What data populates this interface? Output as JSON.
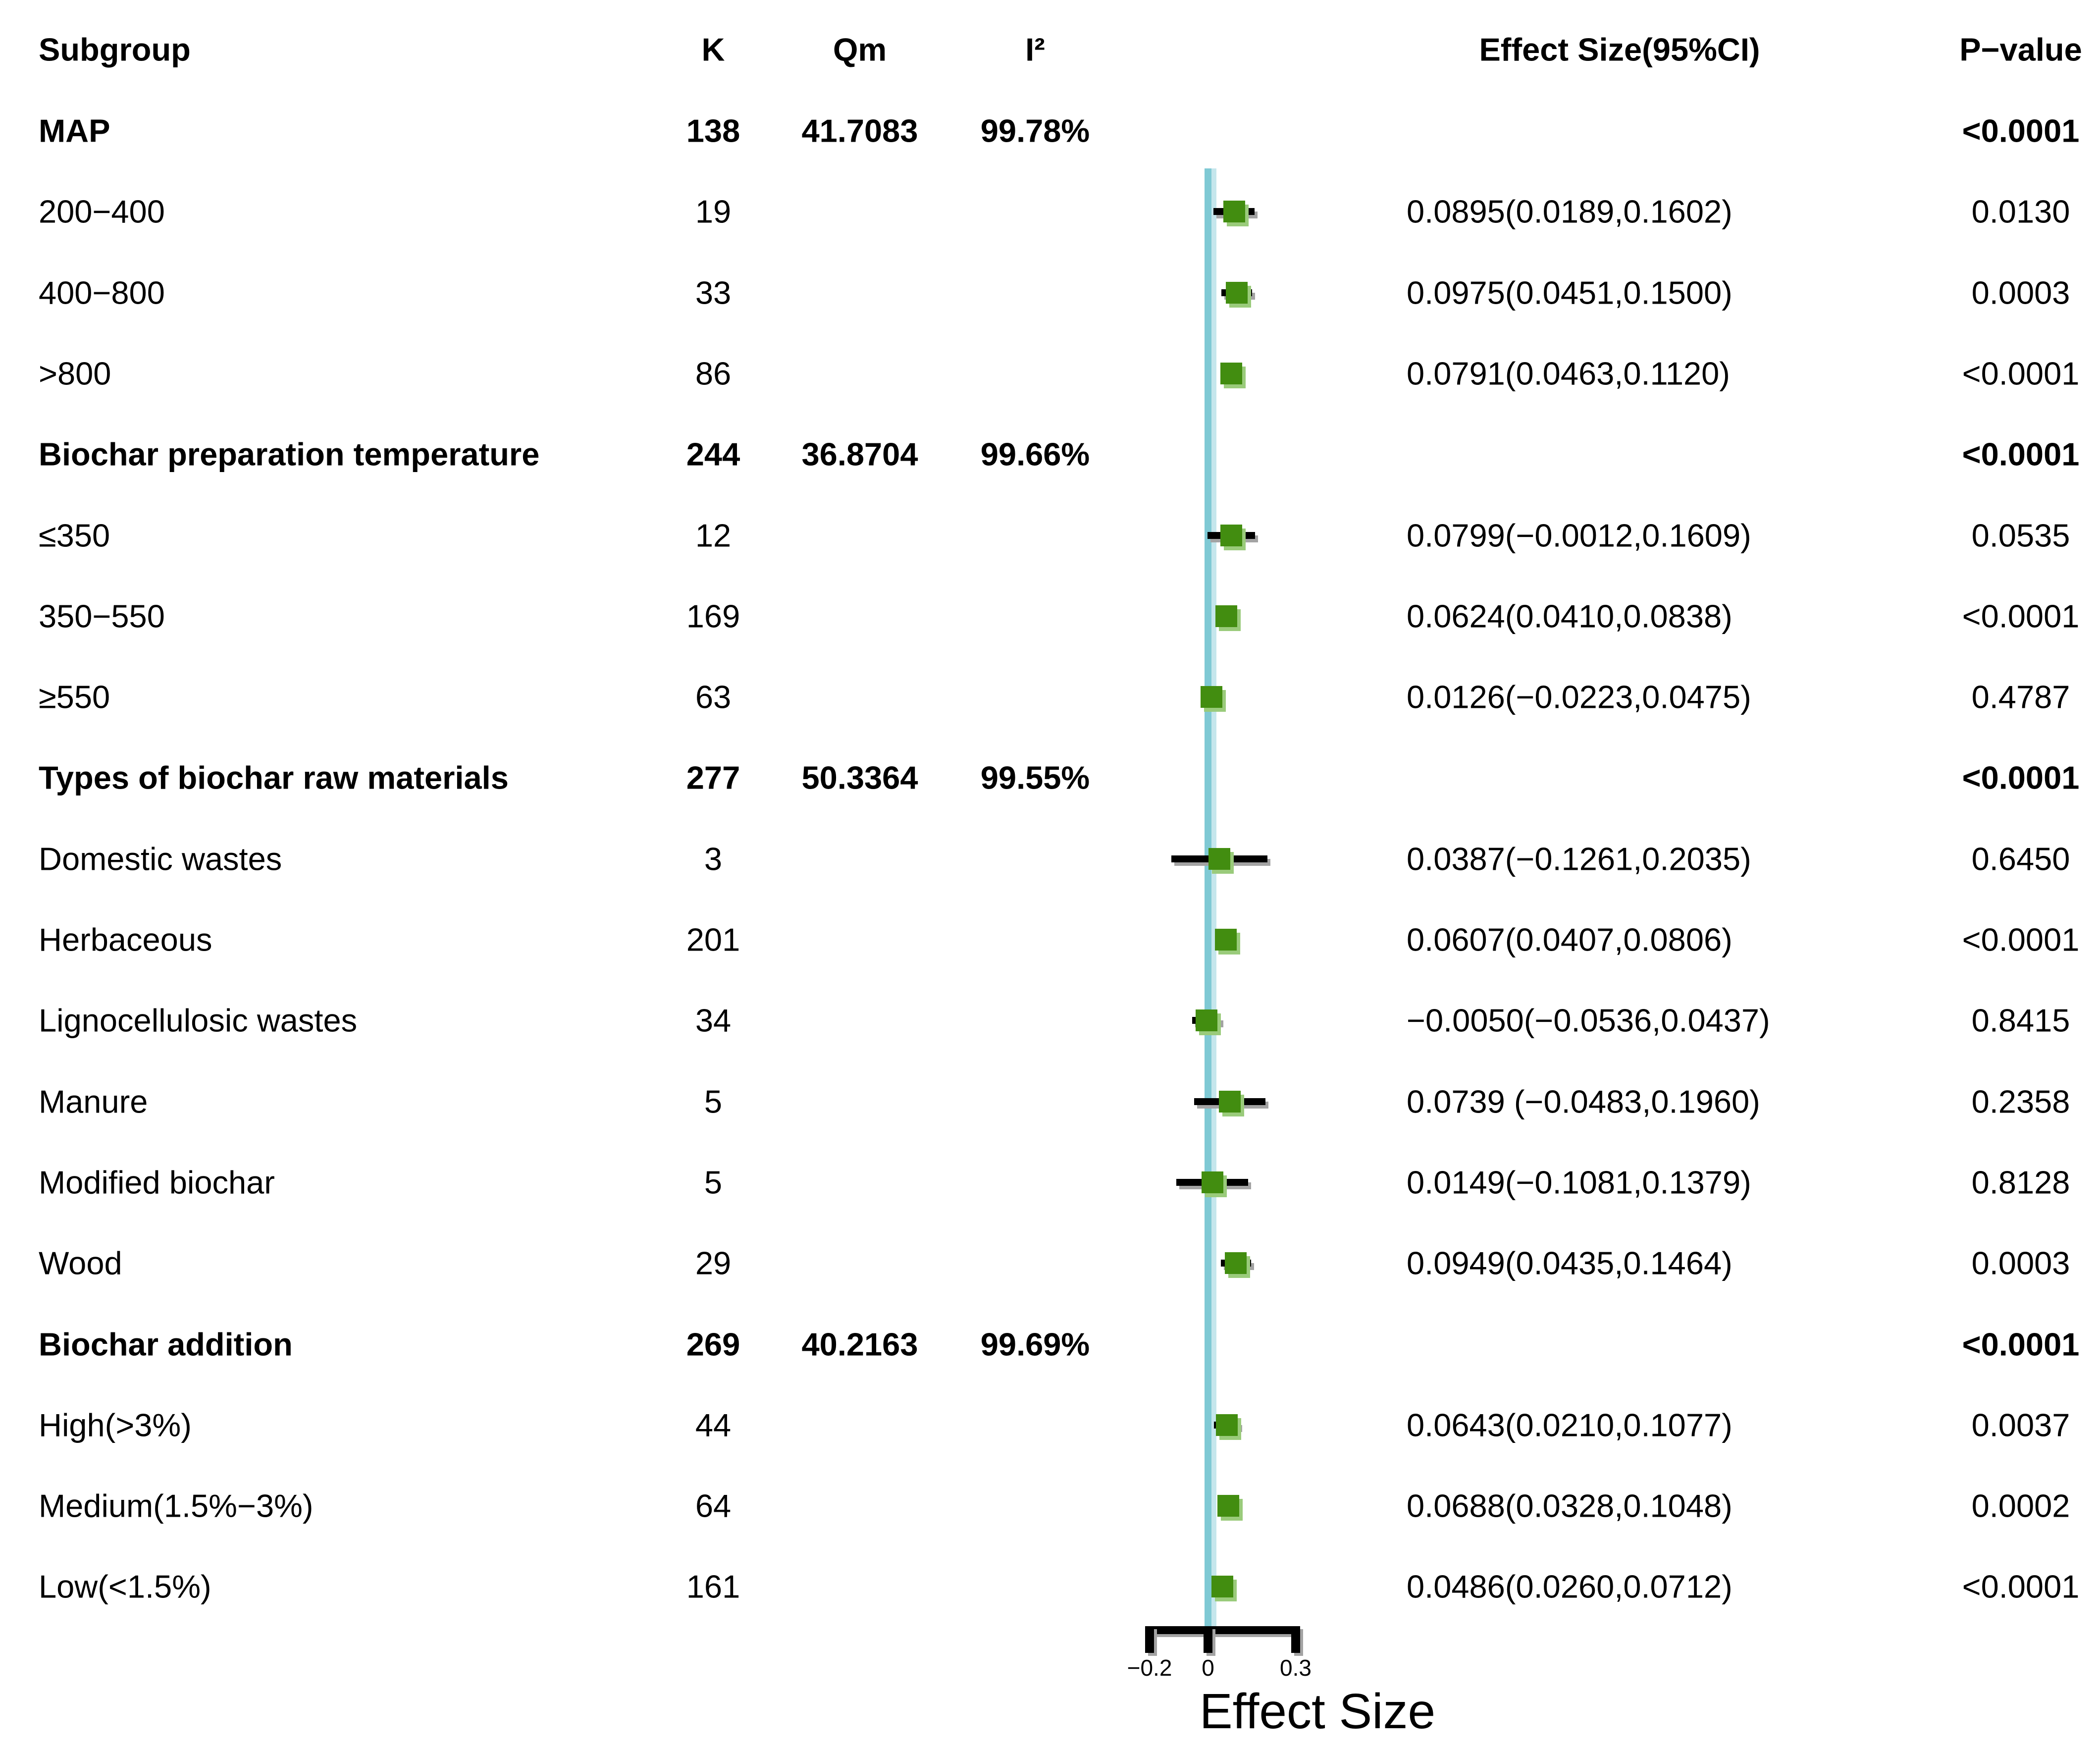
{
  "colors": {
    "marker": "#428D10",
    "marker_shadow": "#9ACB7B",
    "ci": "#000000",
    "ci_shadow": "#A3A3A3",
    "reference_line": "#7FC9D4",
    "reference_line_shadow": "#C5E6EC",
    "text": "#000000",
    "background": "#FFFFFF"
  },
  "chart_data": {
    "type": "forest",
    "variant": "subgroup-meta-analysis",
    "title": "",
    "xlabel": "Effect Size",
    "legend": "none",
    "grid": false,
    "x_axis": {
      "range": [
        -0.2,
        0.3
      ],
      "tick_values": [
        -0.2,
        0,
        0.3
      ],
      "tick_labels": [
        "−0.2",
        "0",
        "0.3"
      ],
      "reference_line": 0
    },
    "columns": {
      "subgroup": "Subgroup",
      "k": "K",
      "qm": "Qm",
      "i2": "I²",
      "effect": "Effect Size(95%CI)",
      "pvalue": "P−value"
    },
    "rows": [
      {
        "type": "section",
        "label": "MAP",
        "k": "138",
        "qm": "41.7083",
        "i2": "99.78%",
        "p": "<0.0001"
      },
      {
        "type": "item",
        "label": "200−400",
        "k": "19",
        "es": 0.0895,
        "lo": 0.0189,
        "hi": 0.1602,
        "es_text": "0.0895(0.0189,0.1602)",
        "p": "0.0130"
      },
      {
        "type": "item",
        "label": "400−800",
        "k": "33",
        "es": 0.0975,
        "lo": 0.0451,
        "hi": 0.15,
        "es_text": "0.0975(0.0451,0.1500)",
        "p": "0.0003"
      },
      {
        "type": "item",
        "label": ">800",
        "k": "86",
        "es": 0.0791,
        "lo": 0.0463,
        "hi": 0.112,
        "es_text": "0.0791(0.0463,0.1120)",
        "p": "<0.0001"
      },
      {
        "type": "section",
        "label": "Biochar preparation temperature",
        "k": "244",
        "qm": "36.8704",
        "i2": "99.66%",
        "p": "<0.0001"
      },
      {
        "type": "item",
        "label": "≤350",
        "k": "12",
        "es": 0.0799,
        "lo": -0.0012,
        "hi": 0.1609,
        "es_text": "0.0799(−0.0012,0.1609)",
        "p": "0.0535"
      },
      {
        "type": "item",
        "label": "350−550",
        "k": "169",
        "es": 0.0624,
        "lo": 0.041,
        "hi": 0.0838,
        "es_text": "0.0624(0.0410,0.0838)",
        "p": "<0.0001"
      },
      {
        "type": "item",
        "label": "≥550",
        "k": "63",
        "es": 0.0126,
        "lo": -0.0223,
        "hi": 0.0475,
        "es_text": "0.0126(−0.0223,0.0475)",
        "p": "0.4787"
      },
      {
        "type": "section",
        "label": "Types of biochar raw materials",
        "k": "277",
        "qm": "50.3364",
        "i2": "99.55%",
        "p": "<0.0001"
      },
      {
        "type": "item",
        "label": "Domestic wastes",
        "k": "3",
        "es": 0.0387,
        "lo": -0.1261,
        "hi": 0.2035,
        "es_text": "0.0387(−0.1261,0.2035)",
        "p": "0.6450"
      },
      {
        "type": "item",
        "label": "Herbaceous",
        "k": "201",
        "es": 0.0607,
        "lo": 0.0407,
        "hi": 0.0806,
        "es_text": "0.0607(0.0407,0.0806)",
        "p": "<0.0001"
      },
      {
        "type": "item",
        "label": "Lignocellulosic wastes",
        "k": "34",
        "es": -0.005,
        "lo": -0.0536,
        "hi": 0.0437,
        "es_text": "−0.0050(−0.0536,0.0437)",
        "p": "0.8415"
      },
      {
        "type": "item",
        "label": "Manure",
        "k": "5",
        "es": 0.0739,
        "lo": -0.0483,
        "hi": 0.196,
        "es_text": "0.0739 (−0.0483,0.1960)",
        "p": "0.2358"
      },
      {
        "type": "item",
        "label": "Modified biochar",
        "k": "5",
        "es": 0.0149,
        "lo": -0.1081,
        "hi": 0.1379,
        "es_text": "0.0149(−0.1081,0.1379)",
        "p": "0.8128"
      },
      {
        "type": "item",
        "label": "Wood",
        "k": "29",
        "es": 0.0949,
        "lo": 0.0435,
        "hi": 0.1464,
        "es_text": "0.0949(0.0435,0.1464)",
        "p": "0.0003"
      },
      {
        "type": "section",
        "label": "Biochar addition",
        "k": "269",
        "qm": "40.2163",
        "i2": "99.69%",
        "p": "<0.0001"
      },
      {
        "type": "item",
        "label": "High(>3%)",
        "k": "44",
        "es": 0.0643,
        "lo": 0.021,
        "hi": 0.1077,
        "es_text": "0.0643(0.0210,0.1077)",
        "p": "0.0037"
      },
      {
        "type": "item",
        "label": "Medium(1.5%−3%)",
        "k": "64",
        "es": 0.0688,
        "lo": 0.0328,
        "hi": 0.1048,
        "es_text": "0.0688(0.0328,0.1048)",
        "p": "0.0002"
      },
      {
        "type": "item",
        "label": "Low(<1.5%)",
        "k": "161",
        "es": 0.0486,
        "lo": 0.026,
        "hi": 0.0712,
        "es_text": "0.0486(0.0260,0.0712)",
        "p": "<0.0001"
      }
    ]
  }
}
